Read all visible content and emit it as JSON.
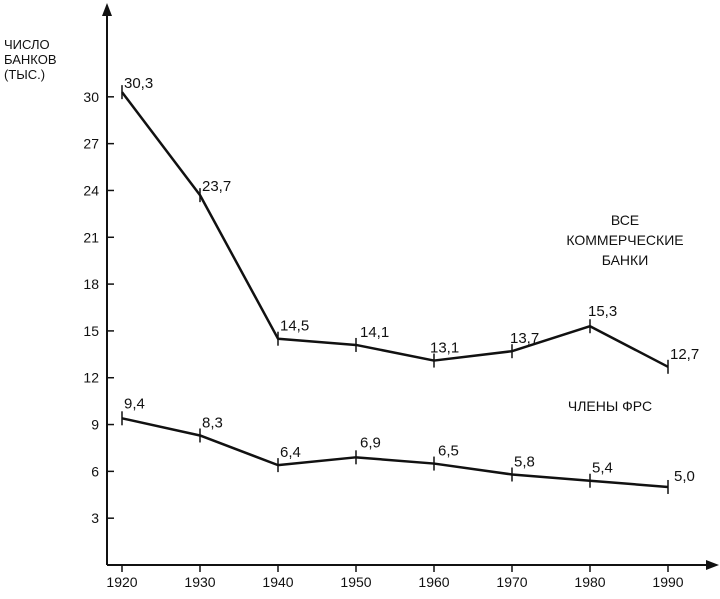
{
  "chart_data": {
    "type": "line",
    "ylabel_lines": [
      "ЧИСЛО",
      "БАНКОВ",
      "(ТЫС.)"
    ],
    "xlabel": "",
    "x": [
      1920,
      1930,
      1940,
      1950,
      1960,
      1970,
      1980,
      1990
    ],
    "xlim": [
      1920,
      1990
    ],
    "ylim": [
      0,
      33
    ],
    "y_ticks": [
      3,
      6,
      9,
      12,
      15,
      18,
      21,
      24,
      27,
      30
    ],
    "grid": false,
    "series": [
      {
        "label_lines": [
          "ВСЕ",
          "КОММЕРЧЕСКИЕ",
          "БАНКИ"
        ],
        "values": [
          30.3,
          23.7,
          14.5,
          14.1,
          13.1,
          13.7,
          15.3,
          12.7
        ],
        "value_labels": [
          "30,3",
          "23,7",
          "14,5",
          "14,1",
          "13,1",
          "13,7",
          "15,3",
          "12,7"
        ],
        "color": "#111111"
      },
      {
        "label_lines": [
          "ЧЛЕНЫ ФРС"
        ],
        "values": [
          9.4,
          8.3,
          6.4,
          6.9,
          6.5,
          5.8,
          5.4,
          5.0
        ],
        "value_labels": [
          "9,4",
          "8,3",
          "6,4",
          "6,9",
          "6,5",
          "5,8",
          "5,4",
          "5,0"
        ],
        "color": "#111111"
      }
    ]
  }
}
